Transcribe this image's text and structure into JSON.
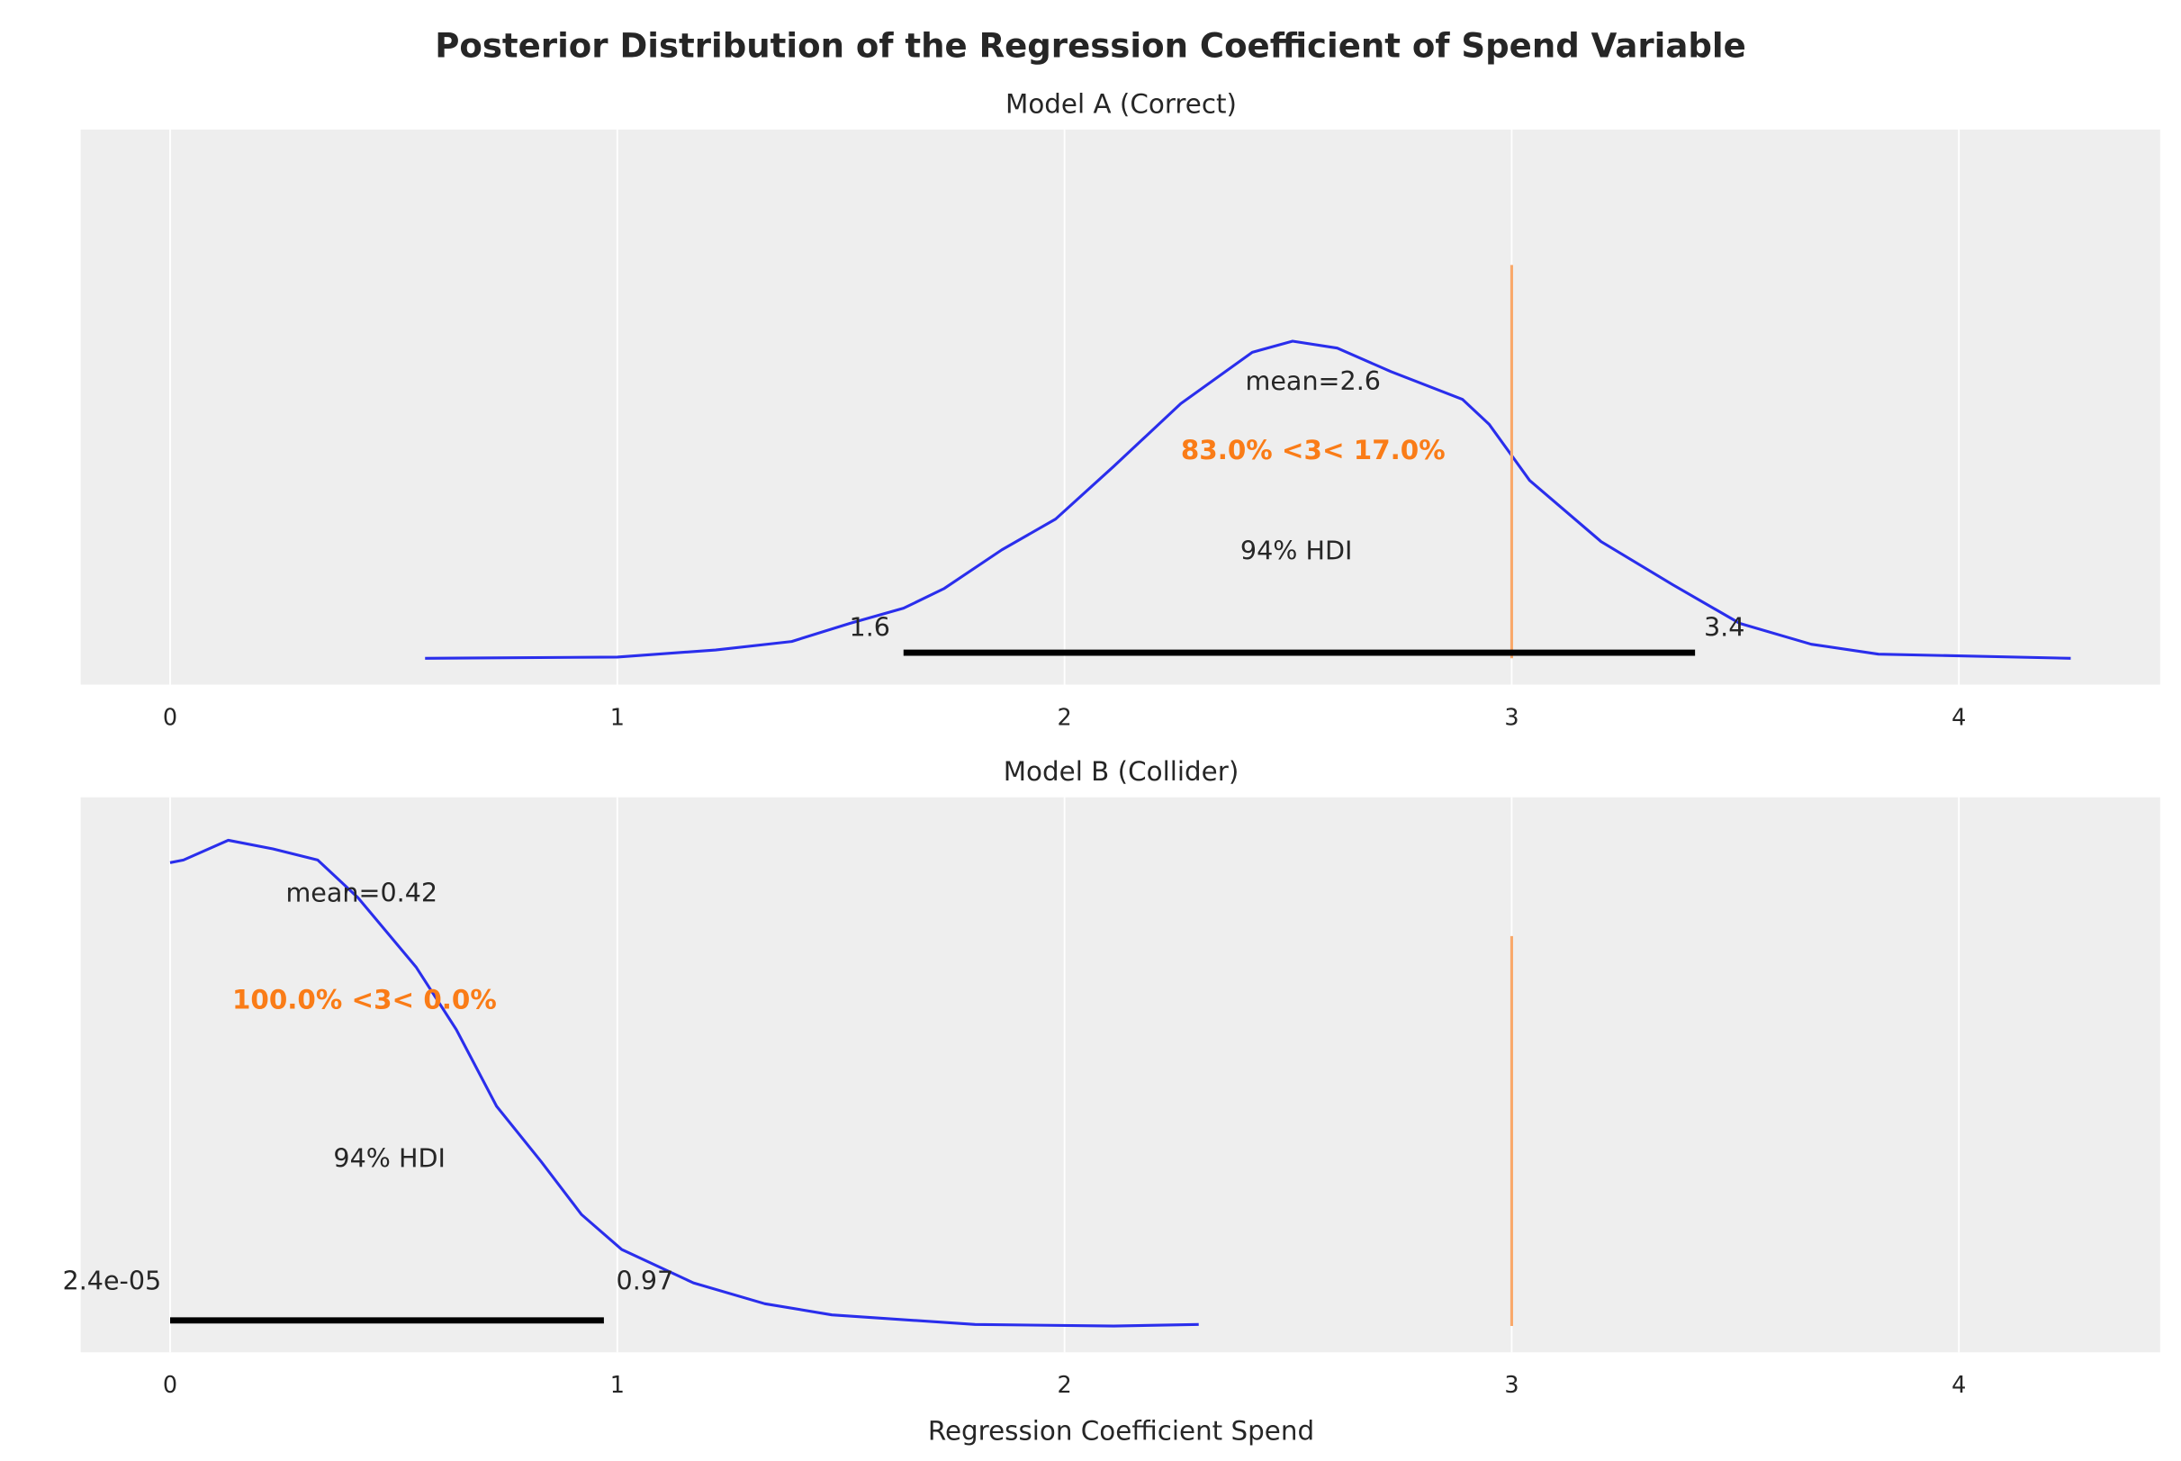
{
  "chart_data": {
    "type": "line",
    "title": "Posterior Distribution of the Regression Coefficient of Spend Variable",
    "xlabel": "Regression Coefficient Spend",
    "xlim": [
      -0.2,
      4.45
    ],
    "xticks": [
      0,
      1,
      2,
      3,
      4
    ],
    "grid": true,
    "colors": {
      "curve": "#2a2eec",
      "ref": "#fa7c17",
      "refline": "#f9a86a",
      "hdi": "#000000",
      "bg": "#eeeeee"
    },
    "panels": [
      {
        "title": "Model A (Correct)",
        "ylim": [
          -0.083,
          1.667
        ],
        "density": {
          "x": [
            0.57,
            1.0,
            1.22,
            1.39,
            1.52,
            1.64,
            1.73,
            1.86,
            1.98,
            2.11,
            2.26,
            2.42,
            2.51,
            2.61,
            2.73,
            2.89,
            2.95,
            3.04,
            3.2,
            3.36,
            3.51,
            3.67,
            3.82,
            4.25
          ],
          "y": [
            0.0,
            0.004,
            0.026,
            0.053,
            0.11,
            0.158,
            0.219,
            0.342,
            0.439,
            0.605,
            0.803,
            0.965,
            1.0,
            0.978,
            0.904,
            0.816,
            0.737,
            0.561,
            0.368,
            0.232,
            0.11,
            0.044,
            0.013,
            0.0
          ]
        },
        "mean_label": "mean=2.6",
        "ref_value": 3,
        "ref_label": "83.0% <3< 17.0%",
        "ref_line_top": 1.24,
        "hdi_label": "94% HDI",
        "hdi": [
          1.64,
          3.41
        ],
        "hdi_low_label": "1.6",
        "hdi_high_label": "3.4"
      },
      {
        "title": "Model B (Collider)",
        "ylim": [
          -0.052,
          1.044
        ],
        "density": {
          "x": [
            0.0,
            0.03,
            0.13,
            0.23,
            0.33,
            0.42,
            0.55,
            0.64,
            0.73,
            0.83,
            0.92,
            1.01,
            1.17,
            1.33,
            1.48,
            1.8,
            2.11,
            2.3
          ],
          "y": [
            0.915,
            0.92,
            0.959,
            0.942,
            0.92,
            0.846,
            0.709,
            0.585,
            0.434,
            0.324,
            0.22,
            0.151,
            0.085,
            0.044,
            0.022,
            0.003,
            0.0,
            0.003
          ]
        },
        "mean_label": "mean=0.42",
        "ref_value": 3,
        "ref_label": "100.0% <3< 0.0%",
        "ref_line_top": 0.77,
        "hdi_label": "94% HDI",
        "hdi": [
          0.0,
          0.97
        ],
        "hdi_low_label": "2.4e-05",
        "hdi_high_label": "0.97"
      }
    ]
  }
}
